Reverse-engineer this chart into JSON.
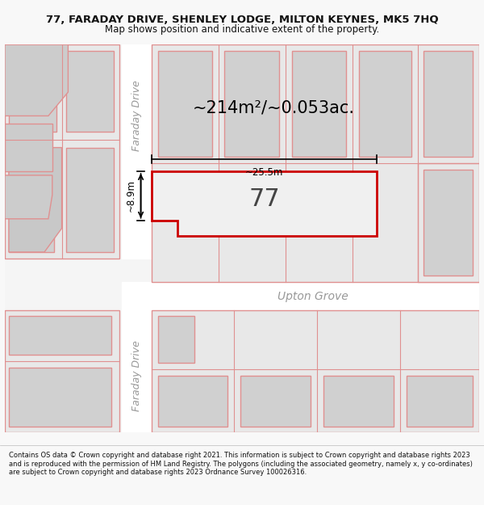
{
  "title": "77, FARADAY DRIVE, SHENLEY LODGE, MILTON KEYNES, MK5 7HQ",
  "subtitle": "Map shows position and indicative extent of the property.",
  "footer": "Contains OS data © Crown copyright and database right 2021. This information is subject to Crown copyright and database rights 2023 and is reproduced with the permission of HM Land Registry. The polygons (including the associated geometry, namely x, y co-ordinates) are subject to Crown copyright and database rights 2023 Ordnance Survey 100026316.",
  "area_label": "~214m²/~0.053ac.",
  "width_label": "~25.5m",
  "height_label": "~8.9m",
  "plot_number": "77",
  "bg_color": "#f5f5f5",
  "road_color": "#ffffff",
  "block_fill": "#e8e8e8",
  "building_fill": "#d0d0d0",
  "highlight_fill": "#f0f0f0",
  "border_color": "#cc0000",
  "outline_color": "#e09090",
  "dim_line_color": "#000000",
  "street_label_faraday_top": "Faraday Drive",
  "street_label_faraday_bot": "Faraday Drive",
  "street_label_upton": "Upton Grove"
}
